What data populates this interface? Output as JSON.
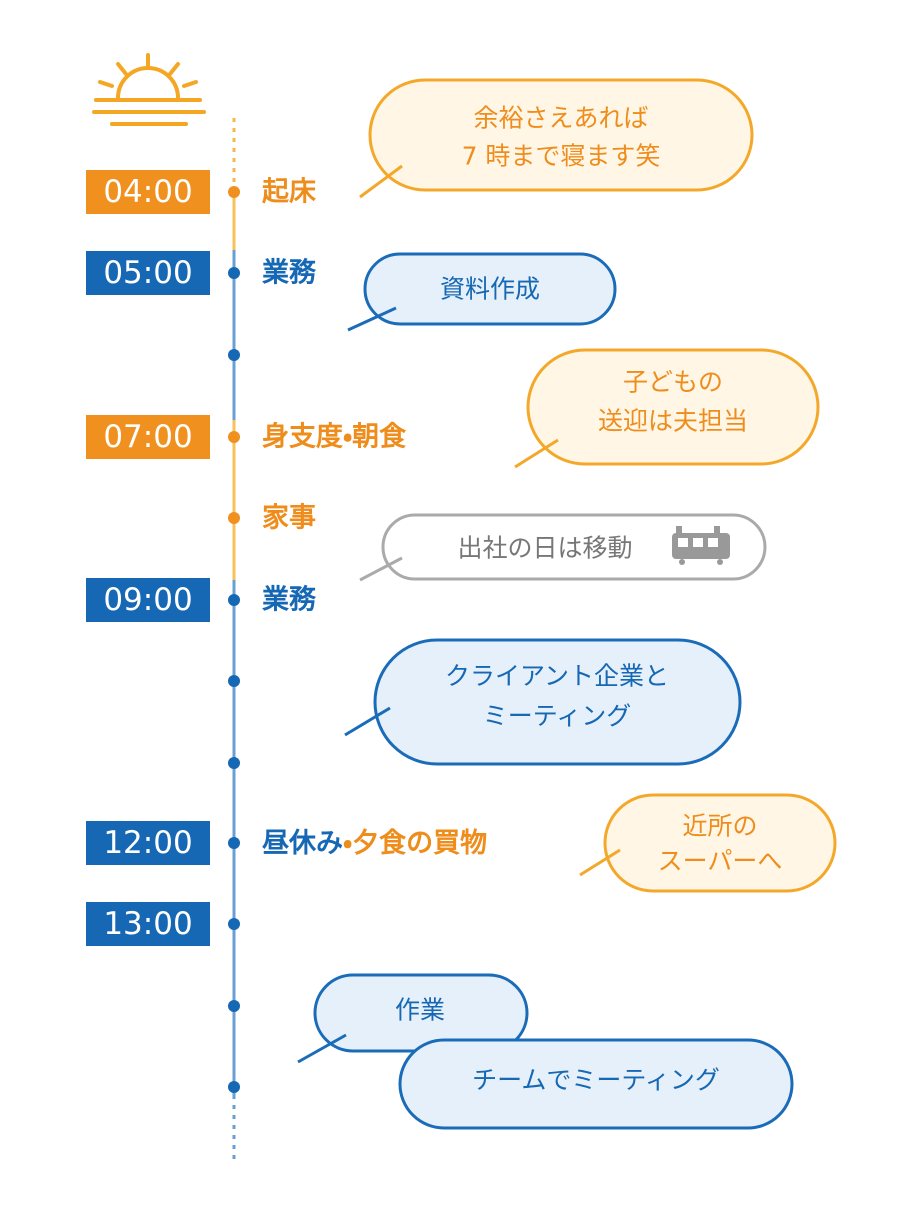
{
  "times": [
    "04:00",
    "05:00",
    "07:00",
    "09:00",
    "12:00",
    "13:00"
  ],
  "events": [
    "起床",
    "業務",
    "身支度・朝食",
    "家事",
    "業務",
    "昼休み",
    "・夕食の買物"
  ],
  "bubbles": [
    [
      "余裕さえあれば",
      "7 時まで寝ます笑"
    ],
    [
      "資料作成"
    ],
    [
      "子どもの",
      "送迎は夫担当"
    ],
    [
      "出社の日は移動"
    ],
    [
      "クライアント企業と",
      "ミーティング"
    ],
    [
      "近所の",
      "スーパーへ"
    ],
    [
      "作業"
    ],
    [
      "チームでミーティング"
    ]
  ]
}
